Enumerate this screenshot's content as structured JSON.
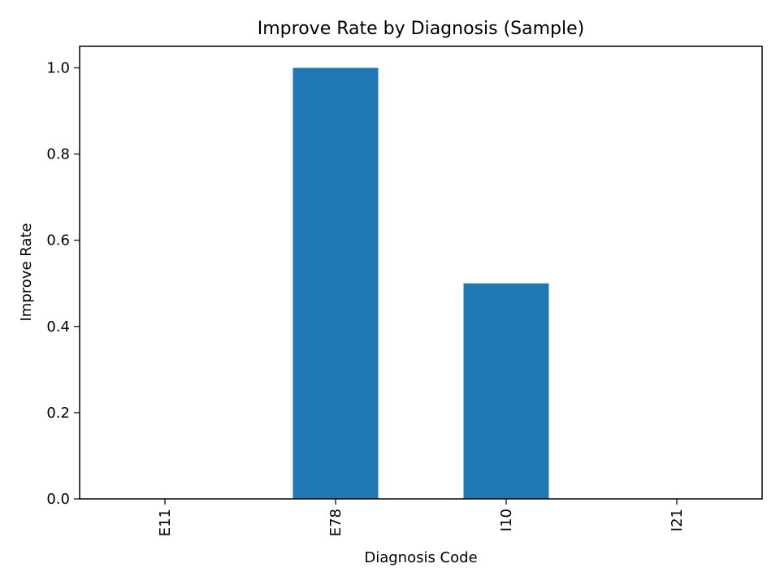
{
  "chart_data": {
    "type": "bar",
    "title": "Improve Rate by Diagnosis (Sample)",
    "xlabel": "Diagnosis Code",
    "ylabel": "Improve Rate",
    "categories": [
      "E11",
      "E78",
      "I10",
      "I21"
    ],
    "values": [
      0.0,
      1.0,
      0.5,
      0.0
    ],
    "ylim": [
      0.0,
      1.05
    ],
    "yticks": [
      "0.0",
      "0.2",
      "0.4",
      "0.6",
      "0.8",
      "1.0"
    ],
    "x_tick_rotation": "vertical",
    "grid": false,
    "legend": "none",
    "bar_color": "#1f77b4"
  }
}
